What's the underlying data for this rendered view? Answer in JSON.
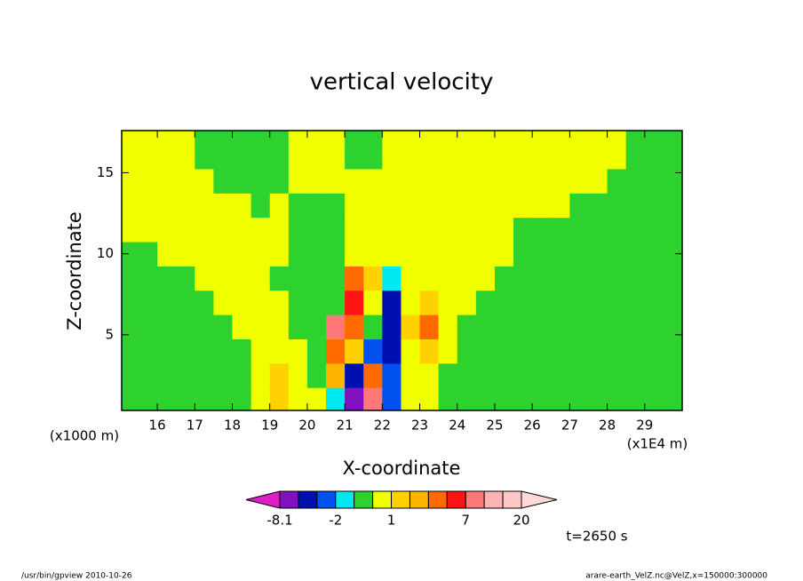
{
  "chart_data": {
    "type": "contour",
    "title": "vertical velocity",
    "xlabel": "X-coordinate",
    "ylabel": "Z-coordinate",
    "x_unit": "(x1E4 m)",
    "y_unit": "(x1000 m)",
    "time_label": "t=2650 s",
    "footer_left": "/usr/bin/gpview   2010-10-26",
    "footer_right": "arare-earth_VelZ.nc@VelZ,x=150000:300000",
    "xlim": [
      15.05,
      30.0
    ],
    "ylim": [
      0.33,
      17.6
    ],
    "xticks": [
      16,
      17,
      18,
      19,
      20,
      21,
      22,
      23,
      24,
      25,
      26,
      27,
      28,
      29
    ],
    "yticks": [
      5,
      10,
      15
    ],
    "levels": [
      -8.1,
      -6,
      -4,
      -2,
      -1,
      0,
      1,
      2,
      3,
      5,
      7,
      10,
      15,
      20
    ],
    "colorbar_ticks": [
      -8.1,
      -2,
      1,
      7,
      20
    ],
    "colors": [
      "#e01ec8",
      "#8010c0",
      "#0010b0",
      "#0050f0",
      "#00e8f0",
      "#2ed22e",
      "#f0ff00",
      "#ffd200",
      "#ffb400",
      "#ff6a00",
      "#ff1414",
      "#ff7878",
      "#ffb4b4",
      "#ffc8c8",
      "#ffd8d8"
    ],
    "x": [
      15.25,
      15.75,
      16.25,
      16.75,
      17.25,
      17.75,
      18.25,
      18.75,
      19.25,
      19.75,
      20.25,
      20.75,
      21.25,
      21.75,
      22.25,
      22.75,
      23.25,
      23.75,
      24.25,
      24.75,
      25.25,
      25.75,
      26.25,
      26.75,
      27.25,
      27.75,
      28.25,
      28.75,
      29.25,
      29.75
    ],
    "y": [
      1,
      2.5,
      4,
      5.5,
      7,
      8.5,
      10,
      11.5,
      13,
      14.5,
      16,
      17.5
    ],
    "z": [
      [
        -0.5,
        -0.5,
        -0.5,
        -0.5,
        -0.5,
        -0.5,
        -0.5,
        0.5,
        1.5,
        0.5,
        0.5,
        -1.5,
        -7,
        8,
        -3,
        0.5,
        0.5,
        -0.5,
        -0.5,
        -0.5,
        -0.5,
        -0.5,
        -0.5,
        -0.5,
        -0.5,
        -0.5,
        -0.5,
        -0.5,
        -0.5,
        -0.5
      ],
      [
        -0.5,
        -0.5,
        -0.5,
        -0.5,
        -0.5,
        -0.5,
        -0.5,
        0.5,
        1.5,
        0.5,
        -0.5,
        2,
        -6,
        4,
        -3,
        0.5,
        0.5,
        -0.5,
        -0.5,
        -0.5,
        -0.5,
        -0.5,
        -0.5,
        -0.5,
        -0.5,
        -0.5,
        -0.5,
        -0.5,
        -0.5,
        -0.5
      ],
      [
        -0.5,
        -0.5,
        -0.5,
        -0.5,
        -0.5,
        -0.5,
        -0.5,
        0.5,
        0.5,
        0.5,
        -0.5,
        4,
        1.5,
        -3,
        -5,
        0.5,
        1.5,
        0.5,
        -0.5,
        -0.5,
        -0.5,
        -0.5,
        -0.5,
        -0.5,
        -0.5,
        -0.5,
        -0.5,
        -0.5,
        -0.5,
        -0.5
      ],
      [
        -0.5,
        -0.5,
        -0.5,
        -0.5,
        -0.5,
        -0.5,
        0.5,
        0.5,
        0.5,
        -0.5,
        -0.5,
        8,
        4,
        -0.5,
        -6,
        1.5,
        3.5,
        0.5,
        -0.5,
        -0.5,
        -0.5,
        -0.5,
        -0.5,
        -0.5,
        -0.5,
        -0.5,
        -0.5,
        -0.5,
        -0.5,
        -0.5
      ],
      [
        -0.5,
        -0.5,
        -0.5,
        -0.5,
        -0.5,
        0.5,
        0.5,
        0.5,
        0.5,
        -0.5,
        -0.5,
        -0.5,
        6,
        0.5,
        -5,
        0.5,
        1.5,
        0.5,
        0.5,
        -0.5,
        -0.5,
        -0.5,
        -0.5,
        -0.5,
        -0.5,
        -0.5,
        -0.5,
        -0.5,
        -0.5,
        -0.5
      ],
      [
        -0.5,
        -0.5,
        -0.5,
        -0.5,
        0.5,
        0.5,
        0.5,
        0.5,
        -0.5,
        -0.5,
        -0.5,
        -0.5,
        3.5,
        1.5,
        -1.5,
        0.5,
        0.5,
        0.5,
        0.5,
        0.5,
        -0.5,
        -0.5,
        -0.5,
        -0.5,
        -0.5,
        -0.5,
        -0.5,
        -0.5,
        -0.5,
        -0.5
      ],
      [
        -0.5,
        -0.5,
        0.5,
        0.5,
        0.5,
        0.5,
        0.5,
        0.5,
        0.5,
        -0.5,
        -0.5,
        -0.5,
        0.5,
        0.5,
        0.5,
        0.5,
        0.5,
        0.5,
        0.5,
        0.5,
        0.5,
        -0.5,
        -0.5,
        -0.5,
        -0.5,
        -0.5,
        -0.5,
        -0.5,
        -0.5,
        -0.5
      ],
      [
        0.5,
        0.5,
        0.5,
        0.5,
        0.5,
        0.5,
        0.5,
        0.5,
        0.5,
        -0.5,
        -0.5,
        -0.5,
        0.5,
        0.5,
        0.5,
        0.5,
        0.5,
        0.5,
        0.5,
        0.5,
        0.5,
        -0.5,
        -0.5,
        -0.5,
        -0.5,
        -0.5,
        -0.5,
        -0.5,
        -0.5,
        -0.5
      ],
      [
        0.5,
        0.5,
        0.5,
        0.5,
        0.5,
        0.5,
        0.5,
        -0.5,
        0.5,
        -0.5,
        -0.5,
        -0.5,
        0.5,
        0.5,
        0.5,
        0.5,
        0.5,
        0.5,
        0.5,
        0.5,
        0.5,
        0.5,
        0.5,
        0.5,
        -0.5,
        -0.5,
        -0.5,
        -0.5,
        -0.5,
        -0.5
      ],
      [
        0.5,
        0.5,
        0.5,
        0.5,
        0.5,
        -0.5,
        -0.5,
        -0.5,
        -0.5,
        0.5,
        0.5,
        0.5,
        0.5,
        0.5,
        0.5,
        0.5,
        0.5,
        0.5,
        0.5,
        0.5,
        0.5,
        0.5,
        0.5,
        0.5,
        0.5,
        0.5,
        -0.5,
        -0.5,
        -0.5,
        -0.5
      ],
      [
        0.5,
        0.5,
        0.5,
        0.5,
        -0.5,
        -0.5,
        -0.5,
        -0.5,
        -0.5,
        0.5,
        0.5,
        0.5,
        -0.5,
        -0.5,
        0.5,
        0.5,
        0.5,
        0.5,
        0.5,
        0.5,
        0.5,
        0.5,
        0.5,
        0.5,
        0.5,
        0.5,
        0.5,
        -0.5,
        -0.5,
        -0.5
      ],
      [
        0.5,
        0.5,
        0.5,
        0.5,
        -0.5,
        -0.5,
        -0.5,
        -0.5,
        -0.5,
        0.5,
        0.5,
        0.5,
        -0.5,
        -0.5,
        0.5,
        0.5,
        0.5,
        0.5,
        0.5,
        0.5,
        0.5,
        0.5,
        0.5,
        0.5,
        0.5,
        0.5,
        0.5,
        -0.5,
        -0.5,
        -0.5
      ]
    ]
  }
}
